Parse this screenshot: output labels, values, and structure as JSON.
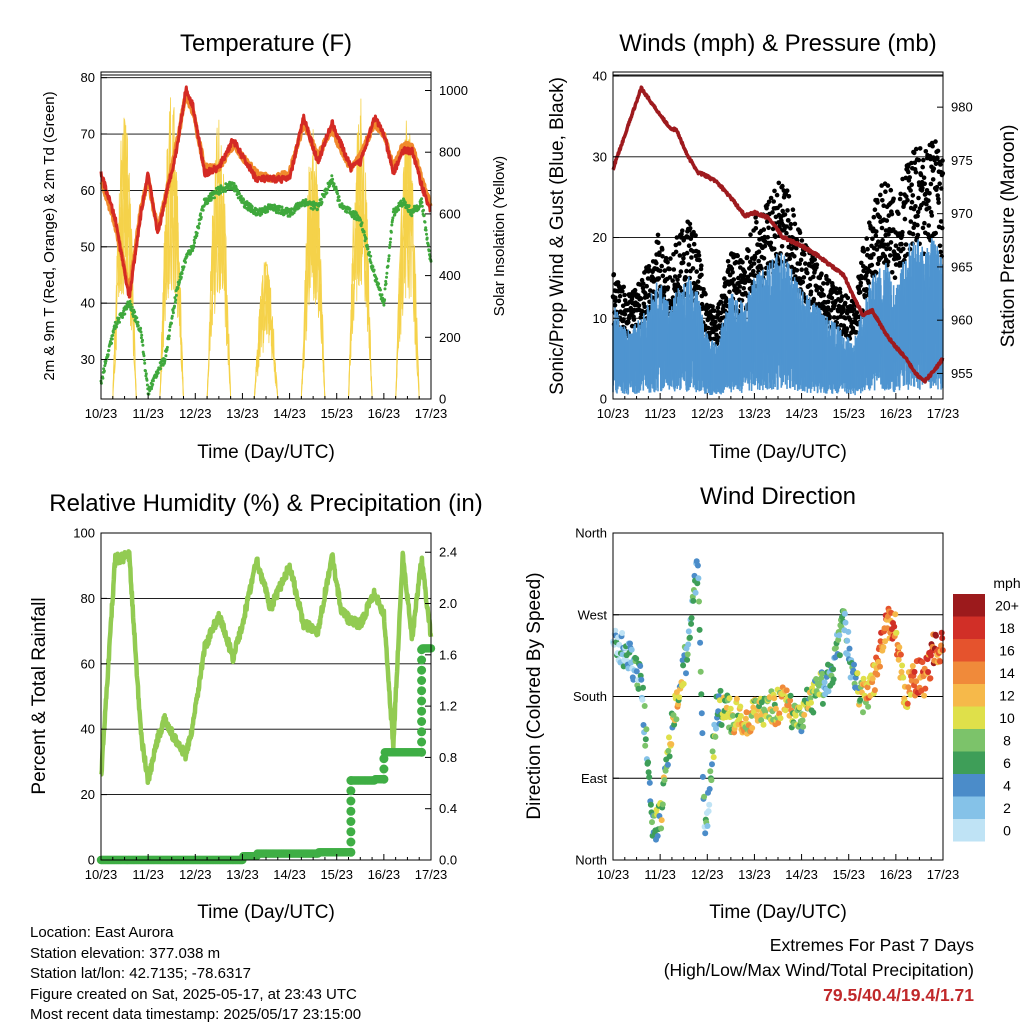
{
  "panels": {
    "temperature": {
      "title": "Temperature (F)",
      "ylabel_left": "2m & 9m T (Red, Orange) & 2m Td (Green)",
      "ylabel_right": "Solar Insolation (Yellow)",
      "xlabel": "Time (Day/UTC)",
      "yticks_left": [
        "30",
        "40",
        "50",
        "60",
        "70",
        "80"
      ],
      "yticks_right": [
        "0",
        "200",
        "400",
        "600",
        "800",
        "1000"
      ]
    },
    "winds": {
      "title": "Winds (mph) & Pressure (mb)",
      "ylabel_left": "Sonic/Prop Wind & Gust (Blue, Black)",
      "ylabel_right": "Station Pressure (Maroon)",
      "xlabel": "Time (Day/UTC)",
      "yticks_left": [
        "0",
        "10",
        "20",
        "30",
        "40"
      ],
      "yticks_right": [
        "955",
        "960",
        "965",
        "970",
        "975",
        "980"
      ]
    },
    "humidity": {
      "title": "Relative Humidity (%) & Precipitation (in)",
      "ylabel_left": "Percent & Total Rainfall",
      "xlabel": "Time (Day/UTC)",
      "yticks_left": [
        "0",
        "20",
        "40",
        "60",
        "80",
        "100"
      ],
      "yticks_right": [
        "0.0",
        "0.4",
        "0.8",
        "1.2",
        "1.6",
        "2.0",
        "2.4"
      ]
    },
    "direction": {
      "title": "Wind Direction",
      "ylabel_left": "Direction (Colored By Speed)",
      "xlabel": "Time (Day/UTC)",
      "yticks_left": [
        "North",
        "East",
        "South",
        "West",
        "North"
      ],
      "legend_title": "mph",
      "legend_labels": [
        "0",
        "2",
        "4",
        "6",
        "8",
        "10",
        "12",
        "14",
        "16",
        "18",
        "20+"
      ],
      "legend_colors": [
        "#bfe3f5",
        "#85c2e8",
        "#4b8cc9",
        "#3e9e58",
        "#7cc36a",
        "#dfe04a",
        "#f6b94a",
        "#f08a3a",
        "#e5532d",
        "#d12f27",
        "#9c1a1c"
      ]
    }
  },
  "xticks": [
    "10/23",
    "11/23",
    "12/23",
    "13/23",
    "14/23",
    "15/23",
    "16/23",
    "17/23"
  ],
  "footer": {
    "location": "Location: East Aurora",
    "elevation": "Station elevation: 377.038 m",
    "latlon": "Station lat/lon: 42.7135; -78.6317",
    "created": "Figure created on Sat, 2025-05-17, at 23:43 UTC",
    "recent": "Most recent data timestamp: 2025/05/17 23:15:00"
  },
  "extremes": {
    "heading": "Extremes For Past 7 Days",
    "subheading": "(High/Low/Max Wind/Total Precipitation)",
    "values": "79.5/40.4/19.4/1.71"
  },
  "colors": {
    "temp2m": "#d42a24",
    "temp9m": "#f08a2c",
    "dewpoint": "#3fa83c",
    "solar": "#f5d24a",
    "wind": "#4f95d0",
    "gust": "#000000",
    "pressure": "#9e1a1e",
    "rh": "#92cb52",
    "precip": "#3fae45"
  },
  "chart_data": [
    {
      "type": "line",
      "title": "Temperature (F)",
      "xlabel": "Time (Day/UTC)",
      "ylabel": "2m & 9m T (Red, Orange) & 2m Td (Green)",
      "y2label": "Solar Insolation (Yellow)",
      "ylim": [
        23,
        81
      ],
      "y2lim": [
        0,
        1060
      ],
      "x": [
        10,
        10.3,
        10.6,
        10.85,
        11.0,
        11.2,
        11.35,
        11.6,
        11.8,
        11.95,
        12.2,
        12.5,
        12.8,
        13.0,
        13.3,
        13.6,
        14.0,
        14.3,
        14.6,
        14.9,
        15.1,
        15.3,
        15.5,
        15.8,
        16.0,
        16.2,
        16.4,
        16.6,
        16.8,
        17.0
      ],
      "series": [
        {
          "name": "2m T",
          "values": [
            63,
            55,
            41,
            56,
            63,
            52,
            58,
            67,
            78,
            75,
            63,
            64,
            69,
            66,
            62,
            62,
            62,
            73,
            65,
            72,
            68,
            64,
            65,
            73,
            70,
            63,
            67,
            67,
            61,
            56
          ]
        },
        {
          "name": "9m T",
          "values": [
            62,
            54,
            42,
            57,
            62,
            53,
            58,
            68,
            77,
            74,
            64,
            64,
            68,
            66,
            63,
            62,
            63,
            72,
            66,
            71,
            67,
            64,
            66,
            72,
            70,
            64,
            68,
            68,
            62,
            57
          ]
        },
        {
          "name": "2m Td",
          "values": [
            26,
            36,
            40,
            35,
            24,
            28,
            30,
            42,
            48,
            50,
            58,
            60,
            61,
            58,
            56,
            57,
            56,
            58,
            57,
            62,
            57,
            56,
            55,
            45,
            40,
            56,
            58,
            56,
            58,
            47
          ]
        },
        {
          "name": "Solar",
          "x": [
            10.25,
            10.5,
            10.75,
            11.25,
            11.5,
            11.75,
            12.25,
            12.5,
            12.75,
            13.25,
            13.5,
            13.75,
            14.25,
            14.5,
            14.75,
            15.25,
            15.5,
            15.75,
            16.25,
            16.5,
            16.75
          ],
          "values": [
            0,
            950,
            0,
            0,
            1000,
            0,
            0,
            920,
            0,
            0,
            460,
            0,
            0,
            900,
            0,
            0,
            1000,
            0,
            0,
            920,
            0
          ]
        }
      ]
    },
    {
      "type": "scatter",
      "title": "Winds (mph) & Pressure (mb)",
      "xlabel": "Time (Day/UTC)",
      "ylabel": "Sonic/Prop Wind & Gust (Blue, Black)",
      "y2label": "Station Pressure (Maroon)",
      "ylim": [
        0,
        40.5
      ],
      "y2lim": [
        952.6,
        983.3
      ],
      "x": [
        10,
        10.3,
        10.6,
        10.85,
        11.0,
        11.2,
        11.35,
        11.6,
        11.8,
        11.95,
        12.2,
        12.5,
        12.8,
        13.0,
        13.3,
        13.6,
        14.0,
        14.3,
        14.6,
        14.9,
        15.1,
        15.3,
        15.5,
        15.8,
        16.0,
        16.2,
        16.4,
        16.6,
        16.8,
        17.0
      ],
      "series": [
        {
          "name": "Wind",
          "values": [
            7,
            5,
            6,
            8,
            9,
            7,
            8,
            9,
            8,
            5,
            4,
            8,
            7,
            9,
            10,
            11,
            8,
            7,
            6,
            5,
            4,
            7,
            9,
            10,
            8,
            11,
            12,
            11,
            12,
            10
          ]
        },
        {
          "name": "Gust",
          "values": [
            12,
            10,
            11,
            14,
            16,
            13,
            15,
            17,
            15,
            10,
            8,
            14,
            13,
            17,
            19,
            21,
            15,
            13,
            11,
            10,
            9,
            14,
            18,
            21,
            18,
            22,
            24,
            23,
            26,
            22
          ]
        },
        {
          "name": "Pressure",
          "values": [
            974.2,
            978,
            981.8,
            980.2,
            979.3,
            978.1,
            977.8,
            975.3,
            973.9,
            973.6,
            973,
            971.5,
            969.8,
            970.1,
            969.6,
            967.8,
            967,
            966.2,
            965.2,
            964.2,
            962.2,
            960.5,
            960.9,
            958.6,
            957.5,
            956.5,
            955.1,
            954.2,
            955.2,
            956.4
          ]
        }
      ]
    },
    {
      "type": "line",
      "title": "Relative Humidity (%) & Precipitation (in)",
      "xlabel": "Time (Day/UTC)",
      "ylabel": "Percent & Total Rainfall",
      "ylim": [
        0,
        100
      ],
      "y2lim": [
        0,
        2.55
      ],
      "x": [
        10,
        10.3,
        10.6,
        10.85,
        11.0,
        11.2,
        11.35,
        11.6,
        11.8,
        11.95,
        12.2,
        12.5,
        12.8,
        13.0,
        13.3,
        13.6,
        14.0,
        14.3,
        14.6,
        14.9,
        15.1,
        15.3,
        15.5,
        15.8,
        16.0,
        16.2,
        16.4,
        16.6,
        16.8,
        17.0
      ],
      "series": [
        {
          "name": "RH",
          "values": [
            25,
            92,
            93,
            38,
            24,
            37,
            43,
            36,
            32,
            41,
            65,
            75,
            62,
            72,
            92,
            77,
            90,
            72,
            70,
            93,
            76,
            73,
            72,
            82,
            75,
            35,
            93,
            68,
            92,
            68
          ]
        },
        {
          "name": "Precip",
          "values": [
            0,
            0,
            0,
            0,
            0,
            0,
            0,
            0,
            0,
            0,
            0,
            0,
            0,
            0.03,
            0.05,
            0.05,
            0.05,
            0.05,
            0.06,
            0.06,
            0.06,
            0.62,
            0.62,
            0.63,
            0.84,
            0.84,
            0.84,
            0.84,
            1.65,
            1.71
          ]
        }
      ]
    },
    {
      "type": "scatter",
      "title": "Wind Direction",
      "xlabel": "Time (Day/UTC)",
      "ylabel": "Direction (Colored By Speed)",
      "ylim": [
        0,
        360
      ],
      "x": [
        10,
        10.3,
        10.6,
        10.85,
        11.0,
        11.2,
        11.35,
        11.6,
        11.8,
        11.95,
        12.2,
        12.5,
        12.8,
        13.0,
        13.3,
        13.6,
        14.0,
        14.3,
        14.6,
        14.9,
        15.1,
        15.3,
        15.5,
        15.8,
        16.0,
        16.2,
        16.4,
        16.6,
        16.8,
        17.0
      ],
      "series": [
        {
          "name": "Direction",
          "values": [
            240,
            225,
            200,
            30,
            45,
            130,
            170,
            240,
            330,
            20,
            170,
            160,
            155,
            160,
            165,
            170,
            160,
            180,
            200,
            260,
            200,
            180,
            190,
            260,
            250,
            180,
            200,
            200,
            230,
            240
          ]
        },
        {
          "name": "Speed",
          "values": [
            4,
            3,
            5,
            7,
            9,
            8,
            11,
            6,
            5,
            4,
            8,
            10,
            12,
            11,
            10,
            13,
            9,
            8,
            6,
            5,
            7,
            11,
            14,
            17,
            15,
            13,
            16,
            15,
            18,
            16
          ]
        }
      ]
    }
  ]
}
